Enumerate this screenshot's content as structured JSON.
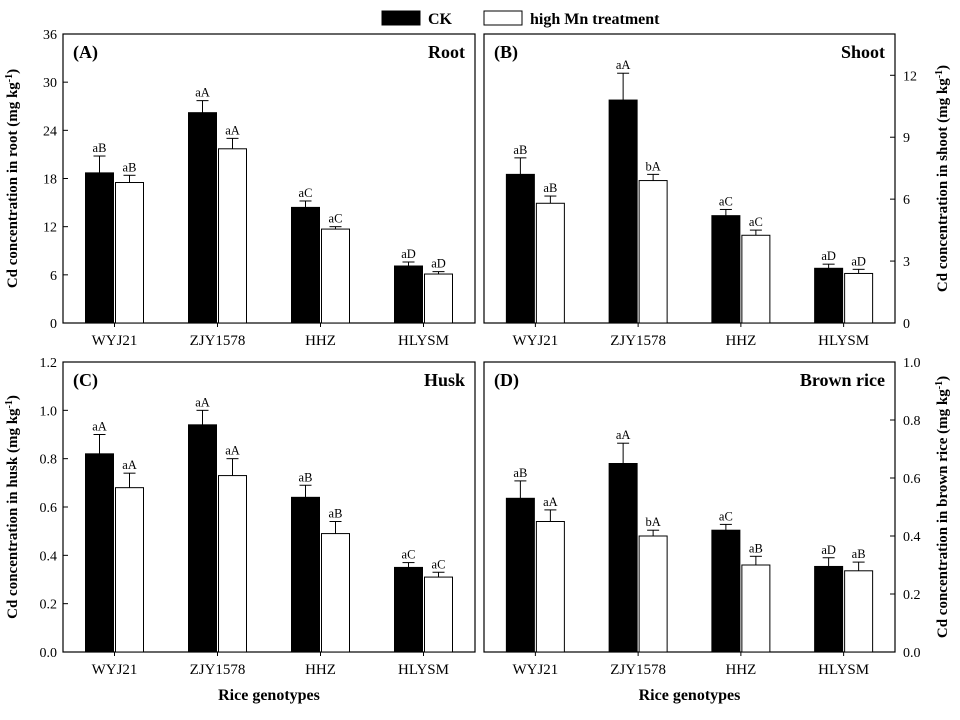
{
  "legend": {
    "items": [
      {
        "label": "CK",
        "fill": "#000000"
      },
      {
        "label": "high Mn treatment",
        "fill": "#ffffff"
      }
    ]
  },
  "chart_data": [
    {
      "type": "bar",
      "panel_label": "(A)",
      "title": "Root",
      "xlabel": "",
      "ylabel": "Cd concentration in root (mg kg-1)",
      "y_axis_side": "left",
      "ylim": [
        0,
        36
      ],
      "yticks": [
        "0",
        "6",
        "12",
        "18",
        "24",
        "30",
        "36"
      ],
      "categories": [
        "WYJ21",
        "ZJY1578",
        "HHZ",
        "HLYSM"
      ],
      "series": [
        {
          "name": "CK",
          "values": [
            18.7,
            26.2,
            14.4,
            7.1
          ],
          "errors": [
            2.1,
            1.5,
            0.8,
            0.5
          ],
          "labels": [
            "aB",
            "aA",
            "aC",
            "aD"
          ]
        },
        {
          "name": "high Mn treatment",
          "values": [
            17.5,
            21.7,
            11.7,
            6.1
          ],
          "errors": [
            0.9,
            1.3,
            0.3,
            0.3
          ],
          "labels": [
            "aB",
            "aA",
            "aC",
            "aD"
          ]
        }
      ]
    },
    {
      "type": "bar",
      "panel_label": "(B)",
      "title": "Shoot",
      "xlabel": "",
      "ylabel": "Cd concentration in shoot (mg kg-1)",
      "y_axis_side": "right",
      "ylim": [
        0,
        14
      ],
      "yticks": [
        "0",
        "3",
        "6",
        "9",
        "12"
      ],
      "categories": [
        "WYJ21",
        "ZJY1578",
        "HHZ",
        "HLYSM"
      ],
      "series": [
        {
          "name": "CK",
          "values": [
            7.2,
            10.8,
            5.2,
            2.65
          ],
          "errors": [
            0.8,
            1.3,
            0.3,
            0.2
          ],
          "labels": [
            "aB",
            "aA",
            "aC",
            "aD"
          ]
        },
        {
          "name": "high Mn treatment",
          "values": [
            5.8,
            6.9,
            4.25,
            2.4
          ],
          "errors": [
            0.35,
            0.3,
            0.25,
            0.2
          ],
          "labels": [
            "aB",
            "bA",
            "aC",
            "aD"
          ]
        }
      ]
    },
    {
      "type": "bar",
      "panel_label": "(C)",
      "title": "Husk",
      "xlabel": "Rice genotypes",
      "ylabel": "Cd concentration in husk (mg kg-1)",
      "y_axis_side": "left",
      "ylim": [
        0,
        1.2
      ],
      "yticks": [
        "0.0",
        "0.2",
        "0.4",
        "0.6",
        "0.8",
        "1.0",
        "1.2"
      ],
      "categories": [
        "WYJ21",
        "ZJY1578",
        "HHZ",
        "HLYSM"
      ],
      "series": [
        {
          "name": "CK",
          "values": [
            0.82,
            0.94,
            0.64,
            0.35
          ],
          "errors": [
            0.08,
            0.06,
            0.05,
            0.02
          ],
          "labels": [
            "aA",
            "aA",
            "aB",
            "aC"
          ]
        },
        {
          "name": "high Mn treatment",
          "values": [
            0.68,
            0.73,
            0.49,
            0.31
          ],
          "errors": [
            0.06,
            0.07,
            0.05,
            0.02
          ],
          "labels": [
            "aA",
            "aA",
            "aB",
            "aC"
          ]
        }
      ]
    },
    {
      "type": "bar",
      "panel_label": "(D)",
      "title": "Brown rice",
      "xlabel": "Rice genotypes",
      "ylabel": "Cd concentration in brown rice (mg kg-1)",
      "y_axis_side": "right",
      "ylim": [
        0,
        1.0
      ],
      "yticks": [
        "0.0",
        "0.2",
        "0.4",
        "0.6",
        "0.8",
        "1.0"
      ],
      "categories": [
        "WYJ21",
        "ZJY1578",
        "HHZ",
        "HLYSM"
      ],
      "series": [
        {
          "name": "CK",
          "values": [
            0.53,
            0.65,
            0.42,
            0.295
          ],
          "errors": [
            0.06,
            0.07,
            0.02,
            0.03
          ],
          "labels": [
            "aB",
            "aA",
            "aC",
            "aD"
          ]
        },
        {
          "name": "high Mn treatment",
          "values": [
            0.45,
            0.4,
            0.3,
            0.28
          ],
          "errors": [
            0.04,
            0.02,
            0.03,
            0.03
          ],
          "labels": [
            "aA",
            "bA",
            "aB",
            "aB"
          ]
        }
      ]
    }
  ]
}
